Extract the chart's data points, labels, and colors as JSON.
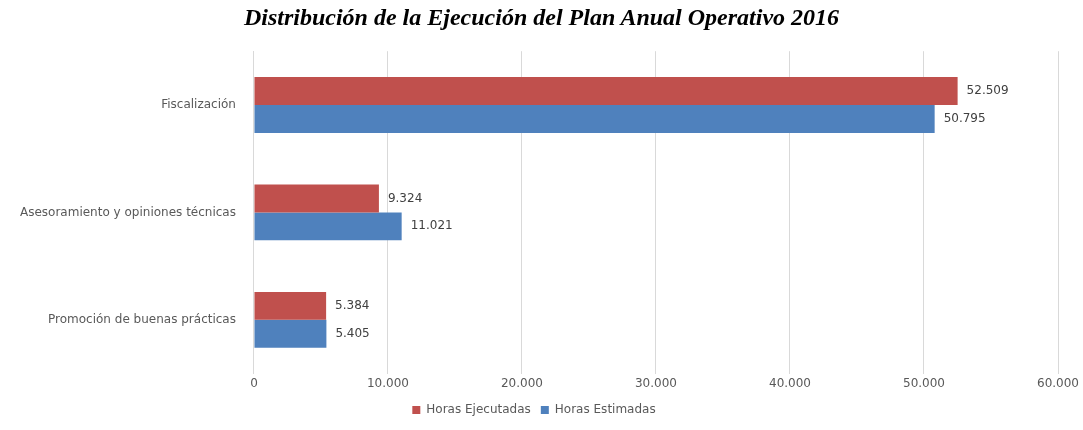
{
  "chart_data": {
    "type": "bar",
    "orientation": "horizontal",
    "title": "Distribución de la Ejecución del Plan Anual Operativo 2016",
    "categories": [
      "Fiscalización",
      "Asesoramiento y opiniones técnicas",
      "Promoción de buenas prácticas"
    ],
    "series": [
      {
        "name": "Horas Ejecutadas",
        "color": "#c0504d",
        "values": [
          52509,
          9324,
          5384
        ],
        "value_labels": [
          "52.509",
          "9.324",
          "5.384"
        ]
      },
      {
        "name": "Horas Estimadas",
        "color": "#4f81bd",
        "values": [
          50795,
          11021,
          5405
        ],
        "value_labels": [
          "50.795",
          "11.021",
          "5.405"
        ]
      }
    ],
    "xlim": [
      0,
      60000
    ],
    "xticks": [
      0,
      {
        "value": 10000,
        "label": "10.000"
      },
      {
        "value": 20000,
        "label": "20.000"
      },
      {
        "value": 30000,
        "label": "30.000"
      },
      {
        "value": 40000,
        "label": "40.000"
      },
      {
        "value": 50000,
        "label": "50.000"
      },
      {
        "value": 60000,
        "label": "60.000"
      }
    ],
    "grid": "x",
    "legend": "bottom"
  }
}
